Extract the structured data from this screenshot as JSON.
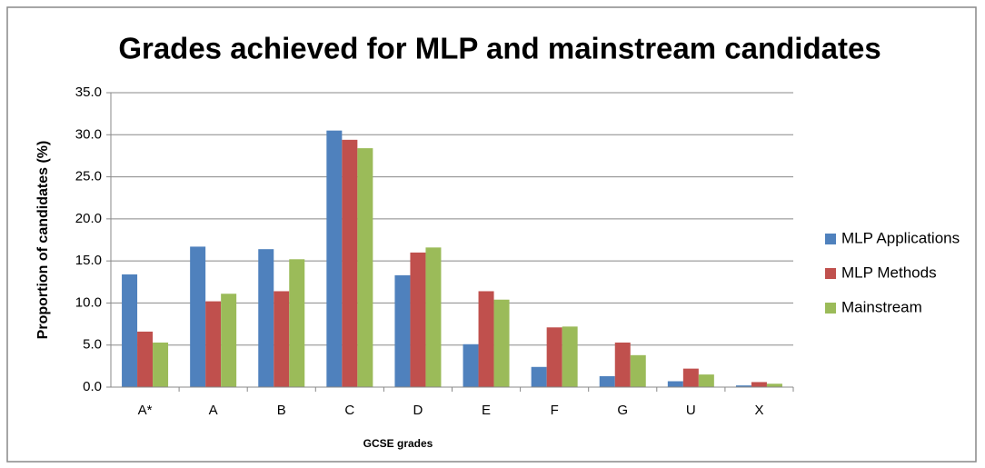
{
  "chart_data": {
    "type": "bar",
    "title": "Grades achieved for MLP and mainstream candidates",
    "x_label": "GCSE grades",
    "y_label": "Proportion of candidates (%)",
    "categories": [
      "A*",
      "A",
      "B",
      "C",
      "D",
      "E",
      "F",
      "G",
      "U",
      "X"
    ],
    "series": [
      {
        "name": "MLP Applications",
        "color": "#4f81bd",
        "values": [
          13.4,
          16.7,
          16.4,
          30.5,
          13.3,
          5.1,
          2.4,
          1.3,
          0.7,
          0.2
        ]
      },
      {
        "name": "MLP Methods",
        "color": "#c0504d",
        "values": [
          6.6,
          10.2,
          11.4,
          29.4,
          16.0,
          11.4,
          7.1,
          5.3,
          2.2,
          0.6
        ]
      },
      {
        "name": "Mainstream",
        "color": "#9bbb59",
        "values": [
          5.3,
          11.1,
          15.2,
          28.4,
          16.6,
          10.4,
          7.2,
          3.8,
          1.5,
          0.4
        ]
      }
    ],
    "ylim": [
      0,
      35
    ],
    "yticks": [
      {
        "value": 0,
        "label": "0.0"
      },
      {
        "value": 5,
        "label": "5.0"
      },
      {
        "value": 10,
        "label": "10.0"
      },
      {
        "value": 15,
        "label": "15.0"
      },
      {
        "value": 20,
        "label": "20.0"
      },
      {
        "value": 25,
        "label": "25.0"
      },
      {
        "value": 30,
        "label": "30.0"
      },
      {
        "value": 35,
        "label": "35.0"
      }
    ],
    "grid": true,
    "legend": "right"
  }
}
